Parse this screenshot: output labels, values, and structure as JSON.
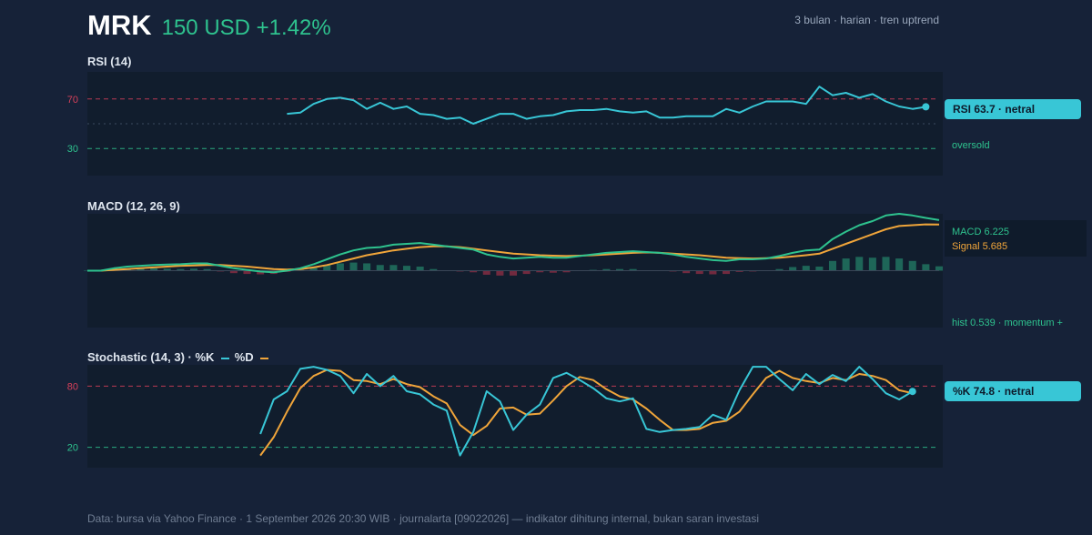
{
  "header": {
    "ticker": "MRK",
    "price_change": "150 USD +1.42%",
    "meta": "3 bulan · harian · tren uptrend"
  },
  "footer": "Data: bursa via Yahoo Finance · 1 September 2026 20:30 WIB · journalarta [09022026] — indikator dihitung internal, bukan saran investasi",
  "colors": {
    "background": "#162238",
    "panel": "#111d2d",
    "rsi_line": "#38c6d6",
    "macd_line": "#2ec28e",
    "signal_line": "#f0a53a",
    "hist_positive": "#2ec28e",
    "hist_negative": "#c2344e",
    "overbought": "#d6405a",
    "oversold": "#2ec28e",
    "price_up": "#2ec28e"
  },
  "chart_data": [
    {
      "type": "line",
      "title": "RSI (14)",
      "ylim": [
        0,
        100
      ],
      "levels": [
        {
          "value": 70,
          "label": "70",
          "style": "dashed",
          "color": "#d6405a"
        },
        {
          "value": 50,
          "label": "",
          "style": "dotted",
          "color": "#3c4a5e"
        },
        {
          "value": 30,
          "label": "30",
          "style": "dashed",
          "color": "#2ec28e",
          "side_label": "oversold"
        }
      ],
      "x_start": 15,
      "x_count": 65,
      "series": [
        {
          "color": "#38c6d6",
          "values": [
            58,
            59,
            66,
            70,
            71,
            69,
            62,
            67,
            62,
            64,
            58,
            57,
            54,
            55,
            50,
            54,
            58,
            58,
            54,
            56,
            57,
            60,
            61,
            61,
            62,
            60,
            59,
            60,
            55,
            55,
            56,
            56,
            56,
            62,
            59,
            64,
            68,
            68,
            68,
            66,
            80,
            73,
            75,
            71,
            74,
            68,
            64,
            62,
            63.7
          ]
        }
      ],
      "last_label": "RSI 63.7 · netral"
    },
    {
      "type": "line",
      "title": "MACD (12, 26, 9)",
      "ylim": [
        -7,
        7
      ],
      "x_count": 65,
      "series": [
        {
          "name": "MACD",
          "color": "#2ec28e",
          "values": [
            0,
            0,
            0.3,
            0.5,
            0.6,
            0.7,
            0.75,
            0.8,
            0.9,
            0.9,
            0.6,
            0.3,
            0.1,
            -0.1,
            -0.2,
            0,
            0.3,
            0.8,
            1.4,
            2,
            2.5,
            2.8,
            2.9,
            3.2,
            3.3,
            3.4,
            3.2,
            3.0,
            2.8,
            2.6,
            2.0,
            1.7,
            1.5,
            1.6,
            1.7,
            1.6,
            1.6,
            1.8,
            2.0,
            2.2,
            2.3,
            2.4,
            2.3,
            2.2,
            2.0,
            1.7,
            1.5,
            1.3,
            1.2,
            1.4,
            1.4,
            1.5,
            1.8,
            2.2,
            2.5,
            2.6,
            3.9,
            4.8,
            5.6,
            6.1,
            6.8,
            7.0,
            6.8,
            6.5,
            6.225
          ]
        },
        {
          "name": "Signal",
          "color": "#f0a53a",
          "values": [
            0,
            0,
            0.1,
            0.2,
            0.3,
            0.4,
            0.5,
            0.6,
            0.65,
            0.7,
            0.7,
            0.6,
            0.5,
            0.35,
            0.2,
            0.15,
            0.2,
            0.4,
            0.7,
            1.1,
            1.5,
            1.9,
            2.2,
            2.5,
            2.7,
            2.9,
            3.0,
            3.0,
            2.9,
            2.7,
            2.5,
            2.3,
            2.1,
            2.0,
            1.9,
            1.85,
            1.8,
            1.85,
            1.9,
            2.0,
            2.1,
            2.2,
            2.25,
            2.2,
            2.1,
            2.0,
            1.9,
            1.75,
            1.6,
            1.55,
            1.5,
            1.55,
            1.6,
            1.75,
            1.9,
            2.1,
            2.7,
            3.3,
            3.9,
            4.5,
            5.1,
            5.5,
            5.6,
            5.7,
            5.685
          ]
        }
      ],
      "histogram": [
        0,
        0,
        0.2,
        0.3,
        0.3,
        0.3,
        0.25,
        0.2,
        0.25,
        0.2,
        -0.1,
        -0.3,
        -0.4,
        -0.45,
        -0.4,
        -0.15,
        0.1,
        0.4,
        0.7,
        0.9,
        1.0,
        0.9,
        0.7,
        0.7,
        0.6,
        0.5,
        0.2,
        0,
        -0.1,
        -0.2,
        -0.5,
        -0.6,
        -0.6,
        -0.4,
        -0.2,
        -0.25,
        -0.2,
        -0.05,
        0.1,
        0.2,
        0.2,
        0.2,
        0.05,
        0,
        -0.1,
        -0.3,
        -0.4,
        -0.45,
        -0.4,
        -0.15,
        -0.1,
        -0.05,
        0.2,
        0.45,
        0.6,
        0.5,
        1.2,
        1.5,
        1.7,
        1.6,
        1.7,
        1.5,
        1.2,
        0.8,
        0.539
      ],
      "legend": [
        "MACD 6.225",
        "Signal 5.685"
      ],
      "hist_label": "hist 0.539 · momentum +"
    },
    {
      "type": "line",
      "title": "Stochastic (14, 3) · %K",
      "legend_label_d": "%D",
      "ylim": [
        0,
        100
      ],
      "levels": [
        {
          "value": 80,
          "label": "80",
          "style": "dashed",
          "color": "#d6405a"
        },
        {
          "value": 20,
          "label": "20",
          "style": "dashed",
          "color": "#2ec28e"
        }
      ],
      "x_start": 13,
      "x_count": 65,
      "series": [
        {
          "name": "%K",
          "color": "#38c6d6",
          "values": [
            33,
            67,
            75,
            97,
            99,
            96,
            90,
            73,
            92,
            80,
            90,
            75,
            72,
            62,
            56,
            12,
            35,
            75,
            65,
            37,
            52,
            62,
            88,
            93,
            86,
            78,
            68,
            65,
            68,
            38,
            35,
            37,
            38,
            40,
            52,
            47,
            76,
            99,
            99,
            87,
            76,
            92,
            82,
            91,
            85,
            99,
            87,
            73,
            67,
            74.8
          ]
        },
        {
          "name": "%D",
          "color": "#f0a53a",
          "values": [
            12,
            30,
            55,
            78,
            90,
            96,
            95,
            86,
            85,
            82,
            87,
            82,
            79,
            70,
            63,
            42,
            32,
            41,
            58,
            59,
            52,
            53,
            66,
            80,
            89,
            86,
            77,
            70,
            67,
            58,
            47,
            37,
            37,
            38,
            44,
            46,
            55,
            72,
            88,
            95,
            88,
            85,
            83,
            88,
            86,
            92,
            90,
            86,
            76,
            73
          ]
        }
      ],
      "last_label": "%K 74.8 · netral"
    }
  ]
}
